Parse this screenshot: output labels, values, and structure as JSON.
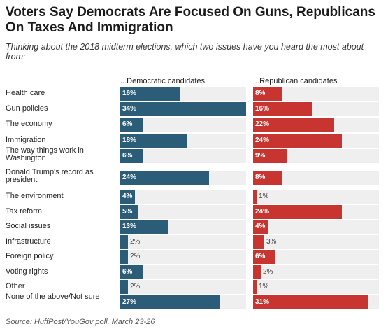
{
  "title": "Voters Say Democrats Are Focused On Guns, Republicans On Taxes And Immigration",
  "subtitle": "Thinking about the 2018 midterm elections, which two issues have you heard the most about from:",
  "source": "Source: HuffPost/YouGov poll, March 23-26",
  "colors": {
    "dem": "#2b5d78",
    "rep": "#c8342f",
    "track": "#efefef"
  },
  "chart_data": {
    "type": "bar",
    "orientation": "horizontal",
    "value_suffix": "%",
    "xlim": [
      0,
      34
    ],
    "categories": [
      "Health care",
      "Gun policies",
      "The economy",
      "Immigration",
      "The way things work in Washington",
      "Donald Trump's record as president",
      "The environment",
      "Tax reform",
      "Social issues",
      "Infrastructure",
      "Foreign policy",
      "Voting rights",
      "Other",
      "None of the above/Not sure"
    ],
    "series": [
      {
        "name": "...Democratic candidates",
        "values": [
          16,
          34,
          6,
          18,
          6,
          24,
          4,
          5,
          13,
          2,
          2,
          6,
          2,
          27
        ]
      },
      {
        "name": "...Republican candidates",
        "values": [
          8,
          16,
          22,
          24,
          9,
          8,
          1,
          24,
          4,
          3,
          6,
          2,
          1,
          31
        ]
      }
    ]
  }
}
